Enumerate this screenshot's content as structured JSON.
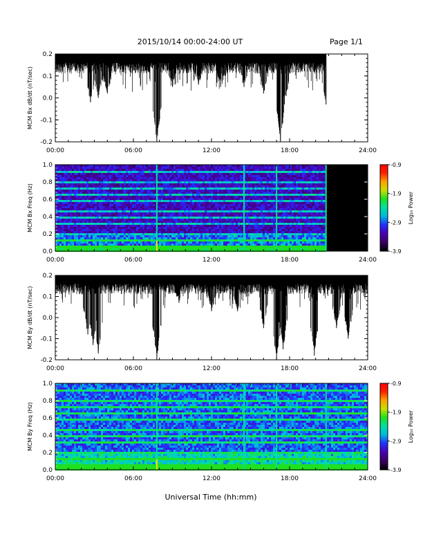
{
  "header": {
    "date_range": "2015/10/14  00:00-24:00 UT",
    "page": "Page 1/1"
  },
  "x_axis": {
    "title": "Universal Time (hh:mm)",
    "range_hours": [
      0,
      24
    ],
    "tick_labels": [
      "00:00",
      "06:00",
      "12:00",
      "18:00",
      "24:00"
    ]
  },
  "colorbar": {
    "label": "Log₁₀ Power",
    "range": [
      -3.9,
      -0.9
    ],
    "tick_labels": [
      "-0.9",
      "-1.9",
      "-2.9",
      "-3.9"
    ],
    "colormap": [
      "#000000",
      "#3a0066",
      "#4b00b4",
      "#2030ff",
      "#00b8e0",
      "#00e0a0",
      "#20e020",
      "#c8e000",
      "#ffa000",
      "#ff2000",
      "#ff0000"
    ]
  },
  "chart_data": [
    {
      "type": "line",
      "ylabel": "MCM Bx dB/dt (nT/sec)",
      "ylim": [
        -0.2,
        0.2
      ],
      "y_tick_labels": [
        "0.2",
        "0.1",
        "0.0",
        "-0.1",
        "-0.2"
      ],
      "data_end_hour": 20.8,
      "baseline": 0.2,
      "dips": [
        {
          "t": 2.7,
          "min": -0.02
        },
        {
          "t": 3.3,
          "min": 0.0
        },
        {
          "t": 4.0,
          "min": 0.02
        },
        {
          "t": 7.8,
          "min": -0.2
        },
        {
          "t": 9.0,
          "min": 0.05
        },
        {
          "t": 11.0,
          "min": 0.06
        },
        {
          "t": 12.7,
          "min": 0.05
        },
        {
          "t": 14.5,
          "min": 0.05
        },
        {
          "t": 16.0,
          "min": 0.02
        },
        {
          "t": 17.3,
          "min": -0.2
        },
        {
          "t": 17.6,
          "min": -0.03
        },
        {
          "t": 20.8,
          "min": -0.03
        }
      ]
    },
    {
      "type": "heatmap",
      "ylabel": "MCM Bx Freq (Hz)",
      "ylim": [
        0.0,
        1.0
      ],
      "y_tick_labels": [
        "1.0",
        "0.8",
        "0.6",
        "0.4",
        "0.2",
        "0.0"
      ],
      "data_end_hour": 20.8,
      "harmonics_hz": [
        0.067,
        0.133,
        0.2,
        0.267,
        0.333,
        0.4,
        0.467,
        0.533,
        0.6,
        0.667,
        0.733,
        0.8,
        0.867,
        0.933
      ],
      "bright_columns_hours": [
        7.8,
        14.5,
        17.0,
        20.8
      ]
    },
    {
      "type": "line",
      "ylabel": "MCM By dB/dt (nT/sec)",
      "ylim": [
        -0.2,
        0.2
      ],
      "y_tick_labels": [
        "0.2",
        "0.1",
        "0.0",
        "-0.1",
        "-0.2"
      ],
      "data_end_hour": 24,
      "baseline": 0.2,
      "dips": [
        {
          "t": 2.9,
          "min": -0.13
        },
        {
          "t": 3.3,
          "min": -0.17
        },
        {
          "t": 2.5,
          "min": -0.08
        },
        {
          "t": 7.8,
          "min": -0.2
        },
        {
          "t": 9.5,
          "min": 0.07
        },
        {
          "t": 12.0,
          "min": 0.03
        },
        {
          "t": 14.0,
          "min": 0.03
        },
        {
          "t": 16.0,
          "min": -0.05
        },
        {
          "t": 17.0,
          "min": -0.2
        },
        {
          "t": 17.5,
          "min": -0.15
        },
        {
          "t": 19.9,
          "min": -0.18
        },
        {
          "t": 21.6,
          "min": -0.05
        },
        {
          "t": 22.5,
          "min": -0.1
        }
      ]
    },
    {
      "type": "heatmap",
      "ylabel": "MCM By Freq (Hz)",
      "ylim": [
        0.0,
        1.0
      ],
      "y_tick_labels": [
        "1.0",
        "0.8",
        "0.6",
        "0.4",
        "0.2",
        "0.0"
      ],
      "data_end_hour": 24,
      "harmonics_hz": [
        0.067,
        0.133,
        0.2,
        0.267,
        0.333,
        0.4,
        0.467,
        0.533,
        0.6,
        0.667,
        0.733,
        0.8,
        0.867,
        0.933
      ],
      "bright_columns_hours": [
        7.8,
        14.5,
        17.0,
        20.8
      ]
    }
  ]
}
